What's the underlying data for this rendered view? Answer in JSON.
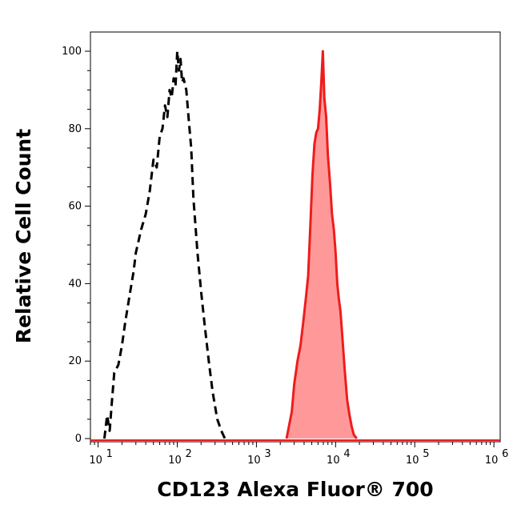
{
  "chart_data": {
    "type": "area",
    "xlabel": "CD123 Alexa Fluor® 700",
    "ylabel": "Relative Cell Count",
    "xscale": "log",
    "xlim": [
      8,
      1200000
    ],
    "ylim": [
      0,
      100
    ],
    "y_ticks": [
      0,
      20,
      40,
      60,
      80,
      100
    ],
    "x_ticks": [
      {
        "value": 10,
        "base": "10",
        "exp": "1"
      },
      {
        "value": 100,
        "base": "10",
        "exp": "2"
      },
      {
        "value": 1000,
        "base": "10",
        "exp": "3"
      },
      {
        "value": 10000,
        "base": "10",
        "exp": "4"
      },
      {
        "value": 100000,
        "base": "10",
        "exp": "5"
      },
      {
        "value": 1000000,
        "base": "10",
        "exp": "6"
      }
    ],
    "grid": false,
    "series": [
      {
        "style": "dashed",
        "color": "#000000",
        "filled": false,
        "points": [
          [
            12,
            0
          ],
          [
            13,
            6
          ],
          [
            14,
            2
          ],
          [
            15,
            10
          ],
          [
            16,
            17
          ],
          [
            18,
            19
          ],
          [
            20,
            24
          ],
          [
            22,
            30
          ],
          [
            25,
            37
          ],
          [
            28,
            43
          ],
          [
            30,
            48
          ],
          [
            35,
            54
          ],
          [
            40,
            58
          ],
          [
            45,
            64
          ],
          [
            50,
            72
          ],
          [
            55,
            70
          ],
          [
            60,
            78
          ],
          [
            65,
            80
          ],
          [
            70,
            86
          ],
          [
            75,
            83
          ],
          [
            80,
            90
          ],
          [
            85,
            88
          ],
          [
            90,
            93
          ],
          [
            95,
            91
          ],
          [
            100,
            100
          ],
          [
            105,
            95
          ],
          [
            110,
            98
          ],
          [
            115,
            92
          ],
          [
            120,
            93
          ],
          [
            130,
            90
          ],
          [
            140,
            82
          ],
          [
            150,
            75
          ],
          [
            160,
            62
          ],
          [
            180,
            48
          ],
          [
            200,
            38
          ],
          [
            220,
            30
          ],
          [
            250,
            20
          ],
          [
            280,
            12
          ],
          [
            320,
            5
          ],
          [
            360,
            2
          ],
          [
            400,
            0
          ]
        ]
      },
      {
        "style": "solid",
        "color": "#ee1c1c",
        "fill": "#ff9999",
        "filled": true,
        "points": [
          [
            2400,
            0
          ],
          [
            2800,
            7
          ],
          [
            3000,
            14
          ],
          [
            3300,
            20
          ],
          [
            3600,
            24
          ],
          [
            3900,
            30
          ],
          [
            4200,
            36
          ],
          [
            4500,
            42
          ],
          [
            4800,
            55
          ],
          [
            5100,
            68
          ],
          [
            5400,
            76
          ],
          [
            5700,
            79
          ],
          [
            6000,
            80
          ],
          [
            6300,
            85
          ],
          [
            6600,
            92
          ],
          [
            6900,
            100
          ],
          [
            7200,
            88
          ],
          [
            7600,
            83
          ],
          [
            8000,
            73
          ],
          [
            8500,
            66
          ],
          [
            9000,
            58
          ],
          [
            9500,
            54
          ],
          [
            10000,
            48
          ],
          [
            10500,
            40
          ],
          [
            11000,
            36
          ],
          [
            11500,
            33
          ],
          [
            12000,
            28
          ],
          [
            13000,
            18
          ],
          [
            14000,
            10
          ],
          [
            15000,
            6
          ],
          [
            16000,
            3
          ],
          [
            17000,
            1
          ],
          [
            18500,
            0
          ]
        ]
      }
    ]
  }
}
